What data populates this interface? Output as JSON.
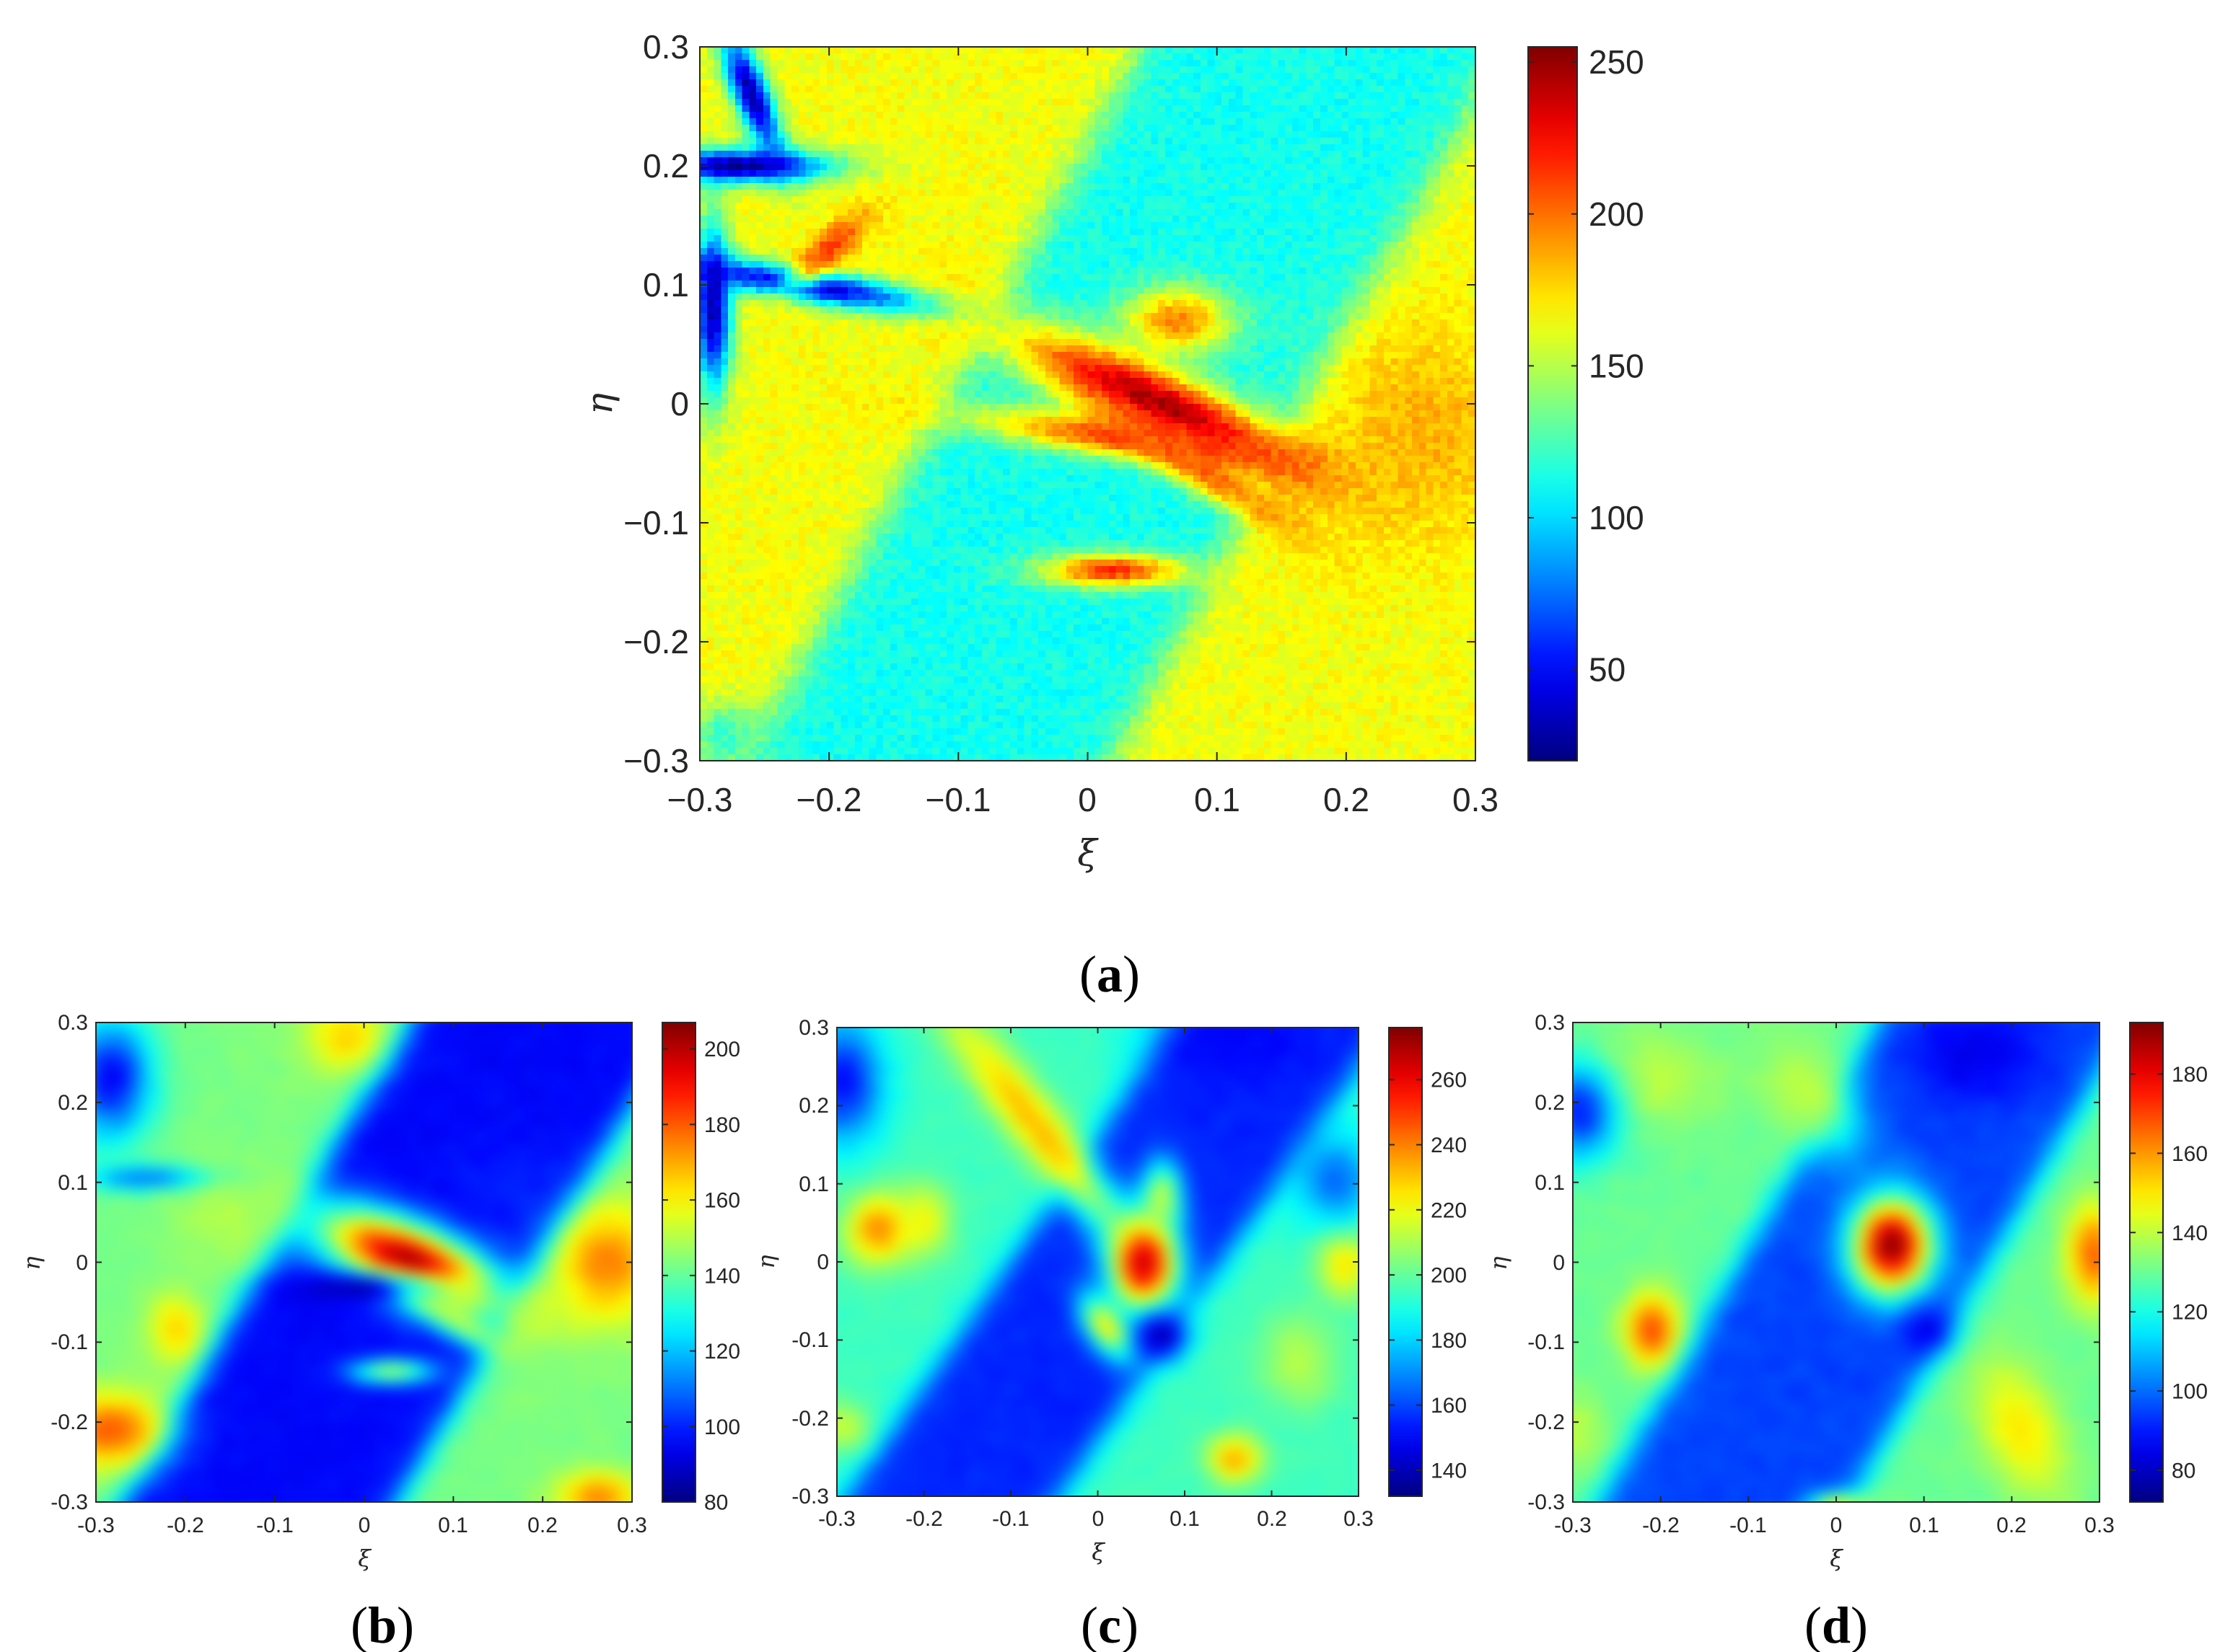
{
  "colormap": "jet",
  "chart_data": [
    {
      "type": "heatmap",
      "id": "a",
      "caption": {
        "open": "(",
        "letter": "a",
        "close": ")"
      },
      "xlabel": "ξ",
      "ylabel": "η",
      "xlim": [
        -0.3,
        0.3
      ],
      "ylim": [
        -0.3,
        0.3
      ],
      "xticks": [
        "−0.3",
        "−0.2",
        "−0.1",
        "0",
        "0.1",
        "0.2",
        "0.3"
      ],
      "yticks": [
        "−0.3",
        "−0.2",
        "−0.1",
        "0",
        "0.1",
        "0.2",
        "0.3"
      ],
      "clim": [
        20,
        255
      ],
      "cticks": [
        {
          "v": 50,
          "label": "50"
        },
        {
          "v": 100,
          "label": "100"
        },
        {
          "v": 150,
          "label": "150"
        },
        {
          "v": 200,
          "label": "200"
        },
        {
          "v": 250,
          "label": "250"
        }
      ],
      "field": {
        "background": 120,
        "band": {
          "angle_deg": 63,
          "center_x": 0.03,
          "half_width": 0.125,
          "inside": 112,
          "outside": 165
        },
        "blobs": [
          {
            "x": 0.055,
            "y": 0.0,
            "sx": 0.02,
            "sy": 0.09,
            "rot": 63,
            "v": 250
          },
          {
            "x": 0.04,
            "y": -0.03,
            "sx": 0.09,
            "sy": 0.012,
            "rot": -8,
            "v": 215
          },
          {
            "x": 0.08,
            "y": -0.05,
            "sx": 0.07,
            "sy": 0.012,
            "rot": -35,
            "v": 205
          },
          {
            "x": 0.02,
            "y": -0.14,
            "sx": 0.04,
            "sy": 0.01,
            "rot": 0,
            "v": 215
          },
          {
            "x": 0.07,
            "y": 0.07,
            "sx": 0.03,
            "sy": 0.02,
            "rot": 0,
            "v": 195
          },
          {
            "x": -0.27,
            "y": 0.2,
            "sx": 0.05,
            "sy": 0.01,
            "rot": 0,
            "v": 25
          },
          {
            "x": -0.26,
            "y": 0.26,
            "sx": 0.01,
            "sy": 0.04,
            "rot": 20,
            "v": 30
          },
          {
            "x": -0.22,
            "y": 0.1,
            "sx": 0.07,
            "sy": 0.01,
            "rot": -10,
            "v": 35
          },
          {
            "x": -0.2,
            "y": 0.13,
            "sx": 0.03,
            "sy": 0.01,
            "rot": 45,
            "v": 210
          },
          {
            "x": -0.29,
            "y": 0.08,
            "sx": 0.01,
            "sy": 0.05,
            "rot": 0,
            "v": 30
          },
          {
            "x": 0.26,
            "y": -0.02,
            "sx": 0.05,
            "sy": 0.06,
            "rot": 0,
            "v": 185
          },
          {
            "x": -0.28,
            "y": -0.28,
            "sx": 0.02,
            "sy": 0.02,
            "rot": 0,
            "v": 120
          }
        ]
      }
    },
    {
      "type": "heatmap",
      "id": "b",
      "caption": {
        "open": "(",
        "letter": "b",
        "close": ")"
      },
      "xlabel": "ξ",
      "ylabel": "η",
      "xlim": [
        -0.3,
        0.3
      ],
      "ylim": [
        -0.3,
        0.3
      ],
      "xticks": [
        "-0.3",
        "-0.2",
        "-0.1",
        "0",
        "0.1",
        "0.2",
        "0.3"
      ],
      "yticks": [
        "-0.3",
        "-0.2",
        "-0.1",
        "0",
        "0.1",
        "0.2",
        "0.3"
      ],
      "clim": [
        80,
        207
      ],
      "cticks": [
        {
          "v": 80,
          "label": "80"
        },
        {
          "v": 100,
          "label": "100"
        },
        {
          "v": 120,
          "label": "120"
        },
        {
          "v": 140,
          "label": "140"
        },
        {
          "v": 160,
          "label": "160"
        },
        {
          "v": 180,
          "label": "180"
        },
        {
          "v": 200,
          "label": "200"
        }
      ],
      "field": {
        "background": 120,
        "band": {
          "angle_deg": 62,
          "center_x": 0.04,
          "half_width": 0.13,
          "inside": 96,
          "outside": 143
        },
        "blobs": [
          {
            "x": 0.05,
            "y": 0.0,
            "sx": 0.03,
            "sy": 0.075,
            "rot": 63,
            "v": 205
          },
          {
            "x": 0.0,
            "y": -0.03,
            "sx": 0.06,
            "sy": 0.012,
            "rot": 0,
            "v": 85
          },
          {
            "x": 0.1,
            "y": -0.07,
            "sx": 0.05,
            "sy": 0.012,
            "rot": -35,
            "v": 150
          },
          {
            "x": 0.03,
            "y": -0.13,
            "sx": 0.03,
            "sy": 0.01,
            "rot": 0,
            "v": 150
          },
          {
            "x": -0.27,
            "y": -0.2,
            "sx": 0.04,
            "sy": 0.03,
            "rot": 0,
            "v": 180
          },
          {
            "x": -0.2,
            "y": -0.08,
            "sx": 0.02,
            "sy": 0.03,
            "rot": 0,
            "v": 165
          },
          {
            "x": 0.26,
            "y": 0.0,
            "sx": 0.04,
            "sy": 0.05,
            "rot": 0,
            "v": 175
          },
          {
            "x": 0.25,
            "y": -0.28,
            "sx": 0.03,
            "sy": 0.02,
            "rot": 0,
            "v": 175
          },
          {
            "x": -0.02,
            "y": 0.27,
            "sx": 0.03,
            "sy": 0.03,
            "rot": 0,
            "v": 165
          },
          {
            "x": -0.27,
            "y": 0.22,
            "sx": 0.03,
            "sy": 0.05,
            "rot": 0,
            "v": 95
          },
          {
            "x": -0.22,
            "y": 0.1,
            "sx": 0.05,
            "sy": 0.01,
            "rot": 0,
            "v": 105
          },
          {
            "x": 0.15,
            "y": 0.1,
            "sx": 0.04,
            "sy": 0.03,
            "rot": 0,
            "v": 100
          },
          {
            "x": -0.15,
            "y": 0.05,
            "sx": 0.04,
            "sy": 0.04,
            "rot": 0,
            "v": 150
          }
        ]
      }
    },
    {
      "type": "heatmap",
      "id": "c",
      "caption": {
        "open": "(",
        "letter": "c",
        "close": ")"
      },
      "xlabel": "ξ",
      "ylabel": "η",
      "xlim": [
        -0.3,
        0.3
      ],
      "ylim": [
        -0.3,
        0.3
      ],
      "xticks": [
        "-0.3",
        "-0.2",
        "-0.1",
        "0",
        "0.1",
        "0.2",
        "0.3"
      ],
      "yticks": [
        "-0.3",
        "-0.2",
        "-0.1",
        "0",
        "0.1",
        "0.2",
        "0.3"
      ],
      "clim": [
        132,
        276
      ],
      "cticks": [
        {
          "v": 140,
          "label": "140"
        },
        {
          "v": 160,
          "label": "160"
        },
        {
          "v": 180,
          "label": "180"
        },
        {
          "v": 200,
          "label": "200"
        },
        {
          "v": 220,
          "label": "220"
        },
        {
          "v": 240,
          "label": "240"
        },
        {
          "v": 260,
          "label": "260"
        }
      ],
      "field": {
        "background": 180,
        "band": {
          "angle_deg": 58,
          "center_x": 0.02,
          "half_width": 0.1,
          "inside": 155,
          "outside": 195
        },
        "blobs": [
          {
            "x": 0.05,
            "y": 0.0,
            "sx": 0.025,
            "sy": 0.04,
            "rot": 0,
            "v": 276
          },
          {
            "x": 0.07,
            "y": 0.08,
            "sx": 0.015,
            "sy": 0.03,
            "rot": 0,
            "v": 215
          },
          {
            "x": 0.01,
            "y": -0.08,
            "sx": 0.015,
            "sy": 0.03,
            "rot": 30,
            "v": 225
          },
          {
            "x": -0.24,
            "y": 0.04,
            "sx": 0.025,
            "sy": 0.03,
            "rot": 0,
            "v": 240
          },
          {
            "x": -0.07,
            "y": 0.17,
            "sx": 0.02,
            "sy": 0.12,
            "rot": 35,
            "v": 232
          },
          {
            "x": -0.19,
            "y": 0.05,
            "sx": 0.02,
            "sy": 0.03,
            "rot": 0,
            "v": 222
          },
          {
            "x": -0.28,
            "y": -0.2,
            "sx": 0.02,
            "sy": 0.02,
            "rot": 0,
            "v": 215
          },
          {
            "x": 0.27,
            "y": 0.0,
            "sx": 0.02,
            "sy": 0.03,
            "rot": 0,
            "v": 228
          },
          {
            "x": 0.15,
            "y": -0.24,
            "sx": 0.02,
            "sy": 0.02,
            "rot": 0,
            "v": 235
          },
          {
            "x": 0.22,
            "y": -0.12,
            "sx": 0.03,
            "sy": 0.04,
            "rot": 0,
            "v": 212
          },
          {
            "x": 0.15,
            "y": 0.27,
            "sx": 0.06,
            "sy": 0.04,
            "rot": 0,
            "v": 150
          },
          {
            "x": -0.28,
            "y": 0.22,
            "sx": 0.03,
            "sy": 0.05,
            "rot": 0,
            "v": 150
          },
          {
            "x": 0.07,
            "y": -0.09,
            "sx": 0.02,
            "sy": 0.02,
            "rot": 0,
            "v": 140
          },
          {
            "x": 0.26,
            "y": 0.1,
            "sx": 0.03,
            "sy": 0.04,
            "rot": 0,
            "v": 165
          }
        ]
      }
    },
    {
      "type": "heatmap",
      "id": "d",
      "caption": {
        "open": "(",
        "letter": "d",
        "close": ")"
      },
      "xlabel": "ξ",
      "ylabel": "η",
      "xlim": [
        -0.3,
        0.3
      ],
      "ylim": [
        -0.3,
        0.3
      ],
      "xticks": [
        "-0.3",
        "-0.2",
        "-0.1",
        "0",
        "0.1",
        "0.2",
        "0.3"
      ],
      "yticks": [
        "-0.3",
        "-0.2",
        "-0.1",
        "0",
        "0.1",
        "0.2",
        "0.3"
      ],
      "clim": [
        72,
        193
      ],
      "cticks": [
        {
          "v": 80,
          "label": "80"
        },
        {
          "v": 100,
          "label": "100"
        },
        {
          "v": 120,
          "label": "120"
        },
        {
          "v": 140,
          "label": "140"
        },
        {
          "v": 160,
          "label": "160"
        },
        {
          "v": 180,
          "label": "180"
        }
      ],
      "field": {
        "background": 112,
        "band": {
          "angle_deg": 62,
          "center_x": 0.03,
          "half_width": 0.12,
          "inside": 95,
          "outside": 130
        },
        "blobs": [
          {
            "x": 0.06,
            "y": 0.02,
            "sx": 0.03,
            "sy": 0.04,
            "rot": 0,
            "v": 193
          },
          {
            "x": -0.2,
            "y": -0.08,
            "sx": 0.02,
            "sy": 0.03,
            "rot": 0,
            "v": 170
          },
          {
            "x": 0.28,
            "y": 0.01,
            "sx": 0.02,
            "sy": 0.04,
            "rot": 0,
            "v": 168
          },
          {
            "x": 0.2,
            "y": -0.2,
            "sx": 0.03,
            "sy": 0.06,
            "rot": 20,
            "v": 150
          },
          {
            "x": -0.2,
            "y": 0.22,
            "sx": 0.05,
            "sy": 0.04,
            "rot": 0,
            "v": 140
          },
          {
            "x": -0.03,
            "y": 0.2,
            "sx": 0.03,
            "sy": 0.05,
            "rot": 30,
            "v": 140
          },
          {
            "x": 0.15,
            "y": 0.25,
            "sx": 0.05,
            "sy": 0.04,
            "rot": 0,
            "v": 85
          },
          {
            "x": 0.1,
            "y": -0.08,
            "sx": 0.02,
            "sy": 0.02,
            "rot": 0,
            "v": 85
          },
          {
            "x": -0.28,
            "y": 0.18,
            "sx": 0.03,
            "sy": 0.04,
            "rot": 0,
            "v": 90
          },
          {
            "x": 0.0,
            "y": -0.29,
            "sx": 0.02,
            "sy": 0.01,
            "rot": 0,
            "v": 150
          },
          {
            "x": -0.28,
            "y": -0.2,
            "sx": 0.02,
            "sy": 0.03,
            "rot": 0,
            "v": 140
          }
        ]
      }
    }
  ]
}
